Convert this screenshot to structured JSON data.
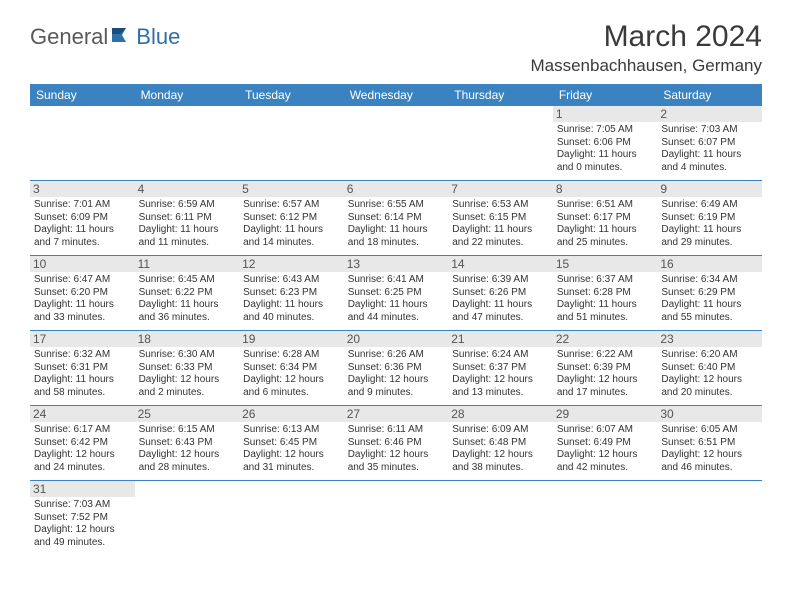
{
  "logo": {
    "part1": "General",
    "part2": "Blue"
  },
  "title": "March 2024",
  "location": "Massenbachhausen, Germany",
  "header_bg": "#3b83c0",
  "daynum_bg": "#e8e8e8",
  "days": [
    "Sunday",
    "Monday",
    "Tuesday",
    "Wednesday",
    "Thursday",
    "Friday",
    "Saturday"
  ],
  "weeks": [
    [
      {
        "n": "",
        "sr": "",
        "ss": "",
        "dl": ""
      },
      {
        "n": "",
        "sr": "",
        "ss": "",
        "dl": ""
      },
      {
        "n": "",
        "sr": "",
        "ss": "",
        "dl": ""
      },
      {
        "n": "",
        "sr": "",
        "ss": "",
        "dl": ""
      },
      {
        "n": "",
        "sr": "",
        "ss": "",
        "dl": ""
      },
      {
        "n": "1",
        "sr": "Sunrise: 7:05 AM",
        "ss": "Sunset: 6:06 PM",
        "dl": "Daylight: 11 hours and 0 minutes."
      },
      {
        "n": "2",
        "sr": "Sunrise: 7:03 AM",
        "ss": "Sunset: 6:07 PM",
        "dl": "Daylight: 11 hours and 4 minutes."
      }
    ],
    [
      {
        "n": "3",
        "sr": "Sunrise: 7:01 AM",
        "ss": "Sunset: 6:09 PM",
        "dl": "Daylight: 11 hours and 7 minutes."
      },
      {
        "n": "4",
        "sr": "Sunrise: 6:59 AM",
        "ss": "Sunset: 6:11 PM",
        "dl": "Daylight: 11 hours and 11 minutes."
      },
      {
        "n": "5",
        "sr": "Sunrise: 6:57 AM",
        "ss": "Sunset: 6:12 PM",
        "dl": "Daylight: 11 hours and 14 minutes."
      },
      {
        "n": "6",
        "sr": "Sunrise: 6:55 AM",
        "ss": "Sunset: 6:14 PM",
        "dl": "Daylight: 11 hours and 18 minutes."
      },
      {
        "n": "7",
        "sr": "Sunrise: 6:53 AM",
        "ss": "Sunset: 6:15 PM",
        "dl": "Daylight: 11 hours and 22 minutes."
      },
      {
        "n": "8",
        "sr": "Sunrise: 6:51 AM",
        "ss": "Sunset: 6:17 PM",
        "dl": "Daylight: 11 hours and 25 minutes."
      },
      {
        "n": "9",
        "sr": "Sunrise: 6:49 AM",
        "ss": "Sunset: 6:19 PM",
        "dl": "Daylight: 11 hours and 29 minutes."
      }
    ],
    [
      {
        "n": "10",
        "sr": "Sunrise: 6:47 AM",
        "ss": "Sunset: 6:20 PM",
        "dl": "Daylight: 11 hours and 33 minutes."
      },
      {
        "n": "11",
        "sr": "Sunrise: 6:45 AM",
        "ss": "Sunset: 6:22 PM",
        "dl": "Daylight: 11 hours and 36 minutes."
      },
      {
        "n": "12",
        "sr": "Sunrise: 6:43 AM",
        "ss": "Sunset: 6:23 PM",
        "dl": "Daylight: 11 hours and 40 minutes."
      },
      {
        "n": "13",
        "sr": "Sunrise: 6:41 AM",
        "ss": "Sunset: 6:25 PM",
        "dl": "Daylight: 11 hours and 44 minutes."
      },
      {
        "n": "14",
        "sr": "Sunrise: 6:39 AM",
        "ss": "Sunset: 6:26 PM",
        "dl": "Daylight: 11 hours and 47 minutes."
      },
      {
        "n": "15",
        "sr": "Sunrise: 6:37 AM",
        "ss": "Sunset: 6:28 PM",
        "dl": "Daylight: 11 hours and 51 minutes."
      },
      {
        "n": "16",
        "sr": "Sunrise: 6:34 AM",
        "ss": "Sunset: 6:29 PM",
        "dl": "Daylight: 11 hours and 55 minutes."
      }
    ],
    [
      {
        "n": "17",
        "sr": "Sunrise: 6:32 AM",
        "ss": "Sunset: 6:31 PM",
        "dl": "Daylight: 11 hours and 58 minutes."
      },
      {
        "n": "18",
        "sr": "Sunrise: 6:30 AM",
        "ss": "Sunset: 6:33 PM",
        "dl": "Daylight: 12 hours and 2 minutes."
      },
      {
        "n": "19",
        "sr": "Sunrise: 6:28 AM",
        "ss": "Sunset: 6:34 PM",
        "dl": "Daylight: 12 hours and 6 minutes."
      },
      {
        "n": "20",
        "sr": "Sunrise: 6:26 AM",
        "ss": "Sunset: 6:36 PM",
        "dl": "Daylight: 12 hours and 9 minutes."
      },
      {
        "n": "21",
        "sr": "Sunrise: 6:24 AM",
        "ss": "Sunset: 6:37 PM",
        "dl": "Daylight: 12 hours and 13 minutes."
      },
      {
        "n": "22",
        "sr": "Sunrise: 6:22 AM",
        "ss": "Sunset: 6:39 PM",
        "dl": "Daylight: 12 hours and 17 minutes."
      },
      {
        "n": "23",
        "sr": "Sunrise: 6:20 AM",
        "ss": "Sunset: 6:40 PM",
        "dl": "Daylight: 12 hours and 20 minutes."
      }
    ],
    [
      {
        "n": "24",
        "sr": "Sunrise: 6:17 AM",
        "ss": "Sunset: 6:42 PM",
        "dl": "Daylight: 12 hours and 24 minutes."
      },
      {
        "n": "25",
        "sr": "Sunrise: 6:15 AM",
        "ss": "Sunset: 6:43 PM",
        "dl": "Daylight: 12 hours and 28 minutes."
      },
      {
        "n": "26",
        "sr": "Sunrise: 6:13 AM",
        "ss": "Sunset: 6:45 PM",
        "dl": "Daylight: 12 hours and 31 minutes."
      },
      {
        "n": "27",
        "sr": "Sunrise: 6:11 AM",
        "ss": "Sunset: 6:46 PM",
        "dl": "Daylight: 12 hours and 35 minutes."
      },
      {
        "n": "28",
        "sr": "Sunrise: 6:09 AM",
        "ss": "Sunset: 6:48 PM",
        "dl": "Daylight: 12 hours and 38 minutes."
      },
      {
        "n": "29",
        "sr": "Sunrise: 6:07 AM",
        "ss": "Sunset: 6:49 PM",
        "dl": "Daylight: 12 hours and 42 minutes."
      },
      {
        "n": "30",
        "sr": "Sunrise: 6:05 AM",
        "ss": "Sunset: 6:51 PM",
        "dl": "Daylight: 12 hours and 46 minutes."
      }
    ],
    [
      {
        "n": "31",
        "sr": "Sunrise: 7:03 AM",
        "ss": "Sunset: 7:52 PM",
        "dl": "Daylight: 12 hours and 49 minutes."
      },
      {
        "n": "",
        "sr": "",
        "ss": "",
        "dl": ""
      },
      {
        "n": "",
        "sr": "",
        "ss": "",
        "dl": ""
      },
      {
        "n": "",
        "sr": "",
        "ss": "",
        "dl": ""
      },
      {
        "n": "",
        "sr": "",
        "ss": "",
        "dl": ""
      },
      {
        "n": "",
        "sr": "",
        "ss": "",
        "dl": ""
      },
      {
        "n": "",
        "sr": "",
        "ss": "",
        "dl": ""
      }
    ]
  ]
}
